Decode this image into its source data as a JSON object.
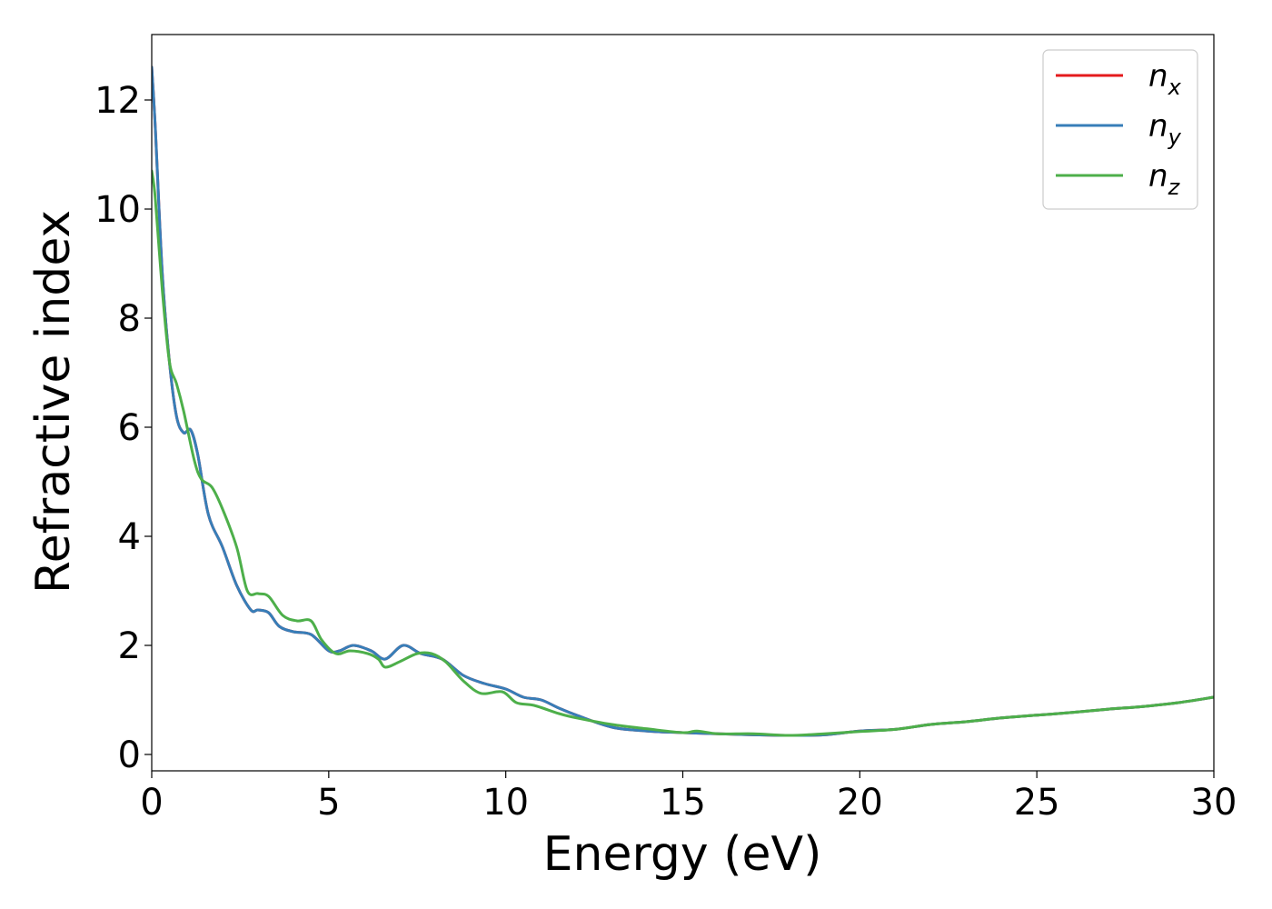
{
  "chart_data": {
    "type": "line",
    "xlabel": "Energy (eV)",
    "ylabel": "Refractive index",
    "xlim": [
      0,
      30
    ],
    "ylim": [
      -0.3,
      13.2
    ],
    "xticks": [
      "0",
      "5",
      "10",
      "15",
      "20",
      "25",
      "30"
    ],
    "yticks": [
      "0",
      "2",
      "4",
      "6",
      "8",
      "10",
      "12"
    ],
    "grid": false,
    "legend_position": "top-right",
    "series": [
      {
        "name": "n",
        "subscript": "x",
        "color": "#e41a1c",
        "x": [
          0,
          0.1,
          0.3,
          0.5,
          0.7,
          0.9,
          1.1,
          1.3,
          1.6,
          2.0,
          2.4,
          2.8,
          3.0,
          3.3,
          3.6,
          4.0,
          4.5,
          5.0,
          5.3,
          5.7,
          6.2,
          6.6,
          7.1,
          7.6,
          8.2,
          8.8,
          9.4,
          10.0,
          10.5,
          11.0,
          11.5,
          12.0,
          13.0,
          14.0,
          15.0,
          16.0,
          17.0,
          18.0,
          19.0,
          20.0,
          21.0,
          22.0,
          23.0,
          24.0,
          25.0,
          26.0,
          27.0,
          28.0,
          29.0,
          30.0
        ],
        "y": [
          12.6,
          11.5,
          8.8,
          7.2,
          6.2,
          5.9,
          5.95,
          5.5,
          4.4,
          3.8,
          3.1,
          2.65,
          2.65,
          2.6,
          2.35,
          2.25,
          2.2,
          1.9,
          1.9,
          2.0,
          1.9,
          1.75,
          2.0,
          1.85,
          1.75,
          1.45,
          1.3,
          1.2,
          1.05,
          1.0,
          0.85,
          0.72,
          0.5,
          0.43,
          0.4,
          0.38,
          0.36,
          0.35,
          0.36,
          0.43,
          0.46,
          0.55,
          0.6,
          0.67,
          0.72,
          0.77,
          0.83,
          0.88,
          0.95,
          1.05
        ]
      },
      {
        "name": "n",
        "subscript": "y",
        "color": "#377eb8",
        "x": [
          0,
          0.1,
          0.3,
          0.5,
          0.7,
          0.9,
          1.1,
          1.3,
          1.6,
          2.0,
          2.4,
          2.8,
          3.0,
          3.3,
          3.6,
          4.0,
          4.5,
          5.0,
          5.3,
          5.7,
          6.2,
          6.6,
          7.1,
          7.6,
          8.2,
          8.8,
          9.4,
          10.0,
          10.5,
          11.0,
          11.5,
          12.0,
          13.0,
          14.0,
          15.0,
          16.0,
          17.0,
          18.0,
          19.0,
          20.0,
          21.0,
          22.0,
          23.0,
          24.0,
          25.0,
          26.0,
          27.0,
          28.0,
          29.0,
          30.0
        ],
        "y": [
          12.6,
          11.5,
          8.8,
          7.2,
          6.2,
          5.9,
          5.95,
          5.5,
          4.4,
          3.8,
          3.1,
          2.65,
          2.65,
          2.6,
          2.35,
          2.25,
          2.2,
          1.9,
          1.9,
          2.0,
          1.9,
          1.75,
          2.0,
          1.85,
          1.75,
          1.45,
          1.3,
          1.2,
          1.05,
          1.0,
          0.85,
          0.72,
          0.5,
          0.43,
          0.4,
          0.38,
          0.36,
          0.35,
          0.36,
          0.43,
          0.46,
          0.55,
          0.6,
          0.67,
          0.72,
          0.77,
          0.83,
          0.88,
          0.95,
          1.05
        ]
      },
      {
        "name": "n",
        "subscript": "z",
        "color": "#4daf4a",
        "x": [
          0,
          0.1,
          0.3,
          0.5,
          0.7,
          0.9,
          1.2,
          1.4,
          1.7,
          2.0,
          2.4,
          2.7,
          3.0,
          3.3,
          3.7,
          4.1,
          4.5,
          4.8,
          5.2,
          5.6,
          6.1,
          6.4,
          6.6,
          7.0,
          7.5,
          7.9,
          8.3,
          8.8,
          9.3,
          9.9,
          10.3,
          10.8,
          11.5,
          12.0,
          13.0,
          14.0,
          15.0,
          15.4,
          16.0,
          17.0,
          18.0,
          19.0,
          20.0,
          21.0,
          22.0,
          23.0,
          24.0,
          25.0,
          26.0,
          27.0,
          28.0,
          29.0,
          30.0
        ],
        "y": [
          10.7,
          10.2,
          8.5,
          7.2,
          6.8,
          6.3,
          5.4,
          5.05,
          4.9,
          4.5,
          3.8,
          3.0,
          2.95,
          2.9,
          2.55,
          2.45,
          2.45,
          2.1,
          1.85,
          1.9,
          1.85,
          1.75,
          1.6,
          1.7,
          1.85,
          1.85,
          1.7,
          1.35,
          1.12,
          1.15,
          0.95,
          0.9,
          0.75,
          0.67,
          0.55,
          0.47,
          0.4,
          0.43,
          0.38,
          0.38,
          0.35,
          0.38,
          0.42,
          0.46,
          0.55,
          0.6,
          0.67,
          0.72,
          0.77,
          0.83,
          0.88,
          0.95,
          1.05
        ]
      }
    ]
  }
}
